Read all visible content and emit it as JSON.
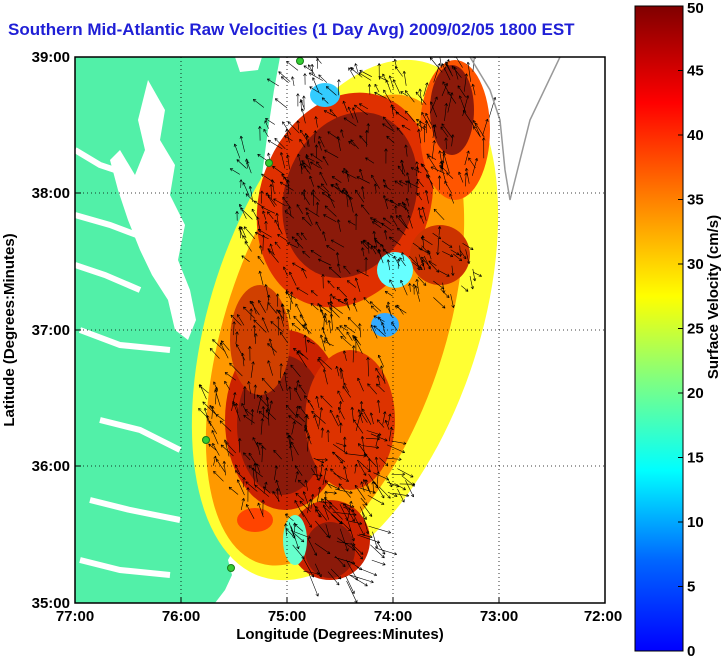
{
  "title": "Southern Mid-Atlantic Raw Velocities (1 Day Avg) 2009/02/05 1800 EST",
  "chart_data": {
    "type": "map",
    "xlabel": "Longitude (Degrees:Minutes)",
    "ylabel": "Latitude (Degrees:Minutes)",
    "x_ticks": [
      "77:00",
      "76:00",
      "75:00",
      "74:00",
      "73:00",
      "72:00"
    ],
    "y_ticks": [
      "39:00",
      "38:00",
      "37:00",
      "36:00",
      "35:00"
    ],
    "xlim": [
      -77,
      -72
    ],
    "ylim": [
      35,
      39
    ],
    "grid": true,
    "colorbar": {
      "label": "Surface Velocity (cm/s)",
      "ticks": [
        "0",
        "5",
        "10",
        "15",
        "20",
        "25",
        "30",
        "35",
        "40",
        "45",
        "50"
      ],
      "range": [
        0,
        50
      ],
      "colormap": "jet"
    },
    "colors": {
      "land": "#52f0a8",
      "water": "#ffffff",
      "title": "#1f1fd6",
      "vectors": "#000000",
      "coastline": "#999999",
      "stations": "#33cc33"
    }
  }
}
